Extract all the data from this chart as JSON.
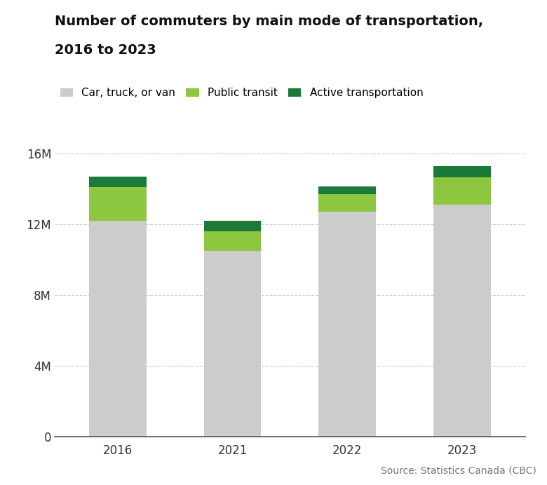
{
  "years": [
    "2016",
    "2021",
    "2022",
    "2023"
  ],
  "car": [
    12200000,
    10500000,
    12700000,
    13100000
  ],
  "transit": [
    1900000,
    1100000,
    1000000,
    1550000
  ],
  "active": [
    600000,
    600000,
    450000,
    650000
  ],
  "colors": {
    "car": "#cccccc",
    "transit": "#8dc63f",
    "active": "#1a7a3a"
  },
  "legend_labels": [
    "Car, truck, or van",
    "Public transit",
    "Active transportation"
  ],
  "title_line1": "Number of commuters by main mode of transportation,",
  "title_line2": "2016 to 2023",
  "ylim": [
    0,
    17000000
  ],
  "yticks": [
    0,
    4000000,
    8000000,
    12000000,
    16000000
  ],
  "ytick_labels": [
    "0",
    "4M",
    "8M",
    "12M",
    "16M"
  ],
  "source": "Source: Statistics Canada (CBC)",
  "background_color": "#ffffff",
  "bar_width": 0.5,
  "grid_color": "#cccccc",
  "title_fontsize": 14,
  "legend_fontsize": 11,
  "tick_fontsize": 12,
  "source_fontsize": 10
}
